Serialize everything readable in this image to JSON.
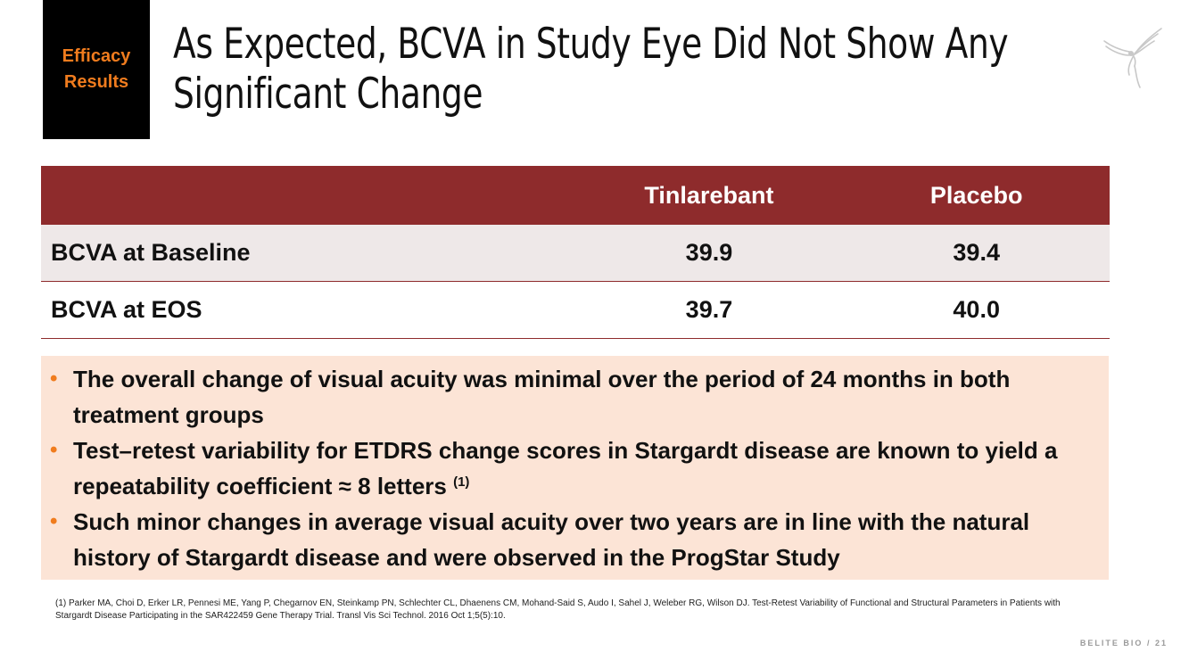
{
  "tag": {
    "line1": "Efficacy",
    "line2": "Results"
  },
  "title": {
    "line1": "As Expected, BCVA in Study Eye Did Not Show Any",
    "line2": "Significant Change"
  },
  "table": {
    "headers": [
      "",
      "Tinlarebant",
      "Placebo"
    ],
    "rows": [
      {
        "label": "BCVA at Baseline",
        "tinlarebant": "39.9",
        "placebo": "39.4"
      },
      {
        "label": "BCVA at EOS",
        "tinlarebant": "39.7",
        "placebo": "40.0"
      }
    ]
  },
  "bullets": [
    {
      "text": "The overall change of visual acuity was minimal over the period of 24 months in both treatment groups"
    },
    {
      "text": "Test–retest variability for ETDRS change scores in Stargardt disease are known to yield a repeatability coefficient ≈ 8 letters",
      "sup": "(1)"
    },
    {
      "text": "Such minor changes in average visual acuity over two years are in line with the natural history of Stargardt disease and were observed in the ProgStar Study"
    }
  ],
  "reference": "(1) Parker MA, Choi D, Erker LR, Pennesi ME, Yang P, Chegarnov EN, Steinkamp PN, Schlechter CL, Dhaenens CM, Mohand-Said S, Audo I, Sahel J, Weleber RG, Wilson DJ. Test-Retest Variability of Functional and Structural Parameters in Patients with Stargardt Disease Participating in the SAR422459 Gene Therapy Trial. Transl Vis Sci Technol. 2016 Oct 1;5(5):10.",
  "footer": {
    "brand": "BELITE BIO",
    "separator": "/",
    "page": "21"
  },
  "colors": {
    "accent": "#8e2b2c",
    "orange": "#f07c1e",
    "note_bg": "#fce4d6"
  },
  "icons": {
    "logo": "hummingbird-logo-icon",
    "bullet": "bullet-dot-icon"
  }
}
